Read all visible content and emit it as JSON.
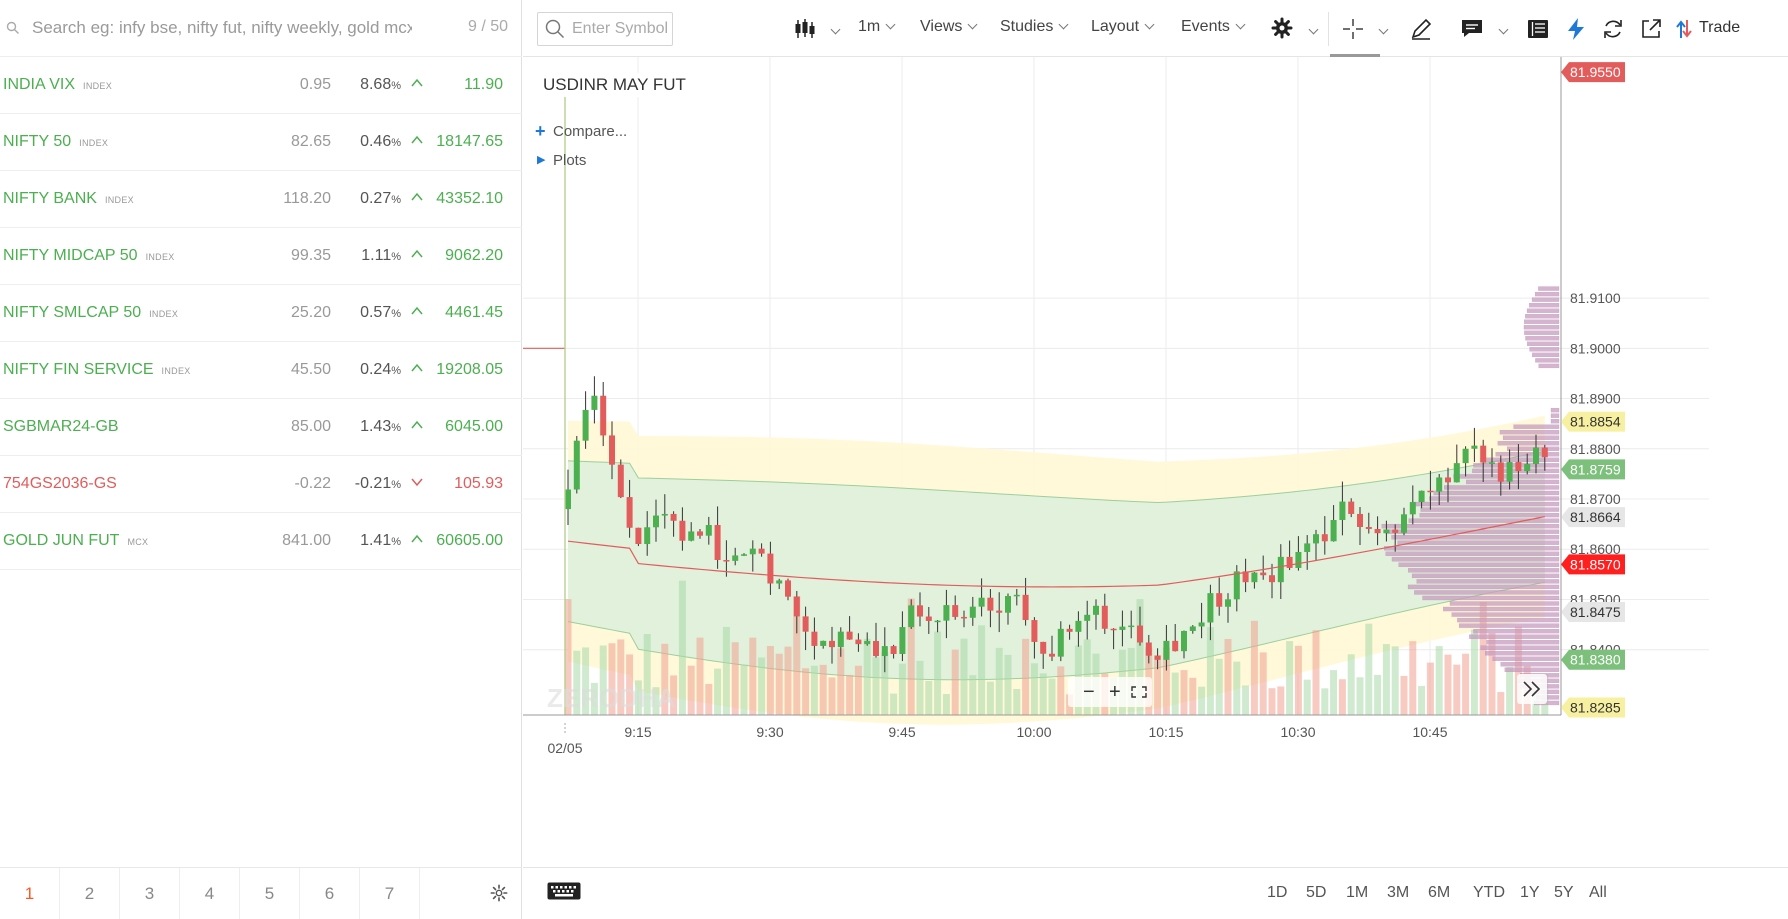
{
  "watchlist": {
    "search_placeholder": "Search eg: infy bse, nifty fut, nifty weekly, gold mcx",
    "count": "9 / 50",
    "items": [
      {
        "name": "INDIA VIX",
        "exchange": "INDEX",
        "change": "0.95",
        "percent": "8.68",
        "ltp": "11.90",
        "dir": "up"
      },
      {
        "name": "NIFTY 50",
        "exchange": "INDEX",
        "change": "82.65",
        "percent": "0.46",
        "ltp": "18147.65",
        "dir": "up"
      },
      {
        "name": "NIFTY BANK",
        "exchange": "INDEX",
        "change": "118.20",
        "percent": "0.27",
        "ltp": "43352.10",
        "dir": "up"
      },
      {
        "name": "NIFTY MIDCAP 50",
        "exchange": "INDEX",
        "change": "99.35",
        "percent": "1.11",
        "ltp": "9062.20",
        "dir": "up"
      },
      {
        "name": "NIFTY SMLCAP 50",
        "exchange": "INDEX",
        "change": "25.20",
        "percent": "0.57",
        "ltp": "4461.45",
        "dir": "up"
      },
      {
        "name": "NIFTY FIN SERVICE",
        "exchange": "INDEX",
        "change": "45.50",
        "percent": "0.24",
        "ltp": "19208.05",
        "dir": "up"
      },
      {
        "name": "SGBMAR24-GB",
        "exchange": "",
        "change": "85.00",
        "percent": "1.43",
        "ltp": "6045.00",
        "dir": "up"
      },
      {
        "name": "754GS2036-GS",
        "exchange": "",
        "change": "-0.22",
        "percent": "-0.21",
        "ltp": "105.93",
        "dir": "down"
      },
      {
        "name": "GOLD JUN FUT",
        "exchange": "MCX",
        "change": "841.00",
        "percent": "1.41",
        "ltp": "60605.00",
        "dir": "up"
      }
    ],
    "percent_sign": "%",
    "pages": [
      "1",
      "2",
      "3",
      "4",
      "5",
      "6",
      "7"
    ],
    "active_page": "1"
  },
  "toolbar": {
    "symbol_placeholder": "Enter Symbol",
    "interval": "1m",
    "views": "Views",
    "studies": "Studies",
    "layout": "Layout",
    "events": "Events",
    "trade": "Trade",
    "icons": [
      "candlestick-icon",
      "gear-icon",
      "crosshair-icon",
      "pencil-icon",
      "comment-icon",
      "table-icon",
      "lightning-icon",
      "refresh-icon",
      "popout-icon",
      "trade-arrows-icon"
    ]
  },
  "chart": {
    "title": "USDINR MAY FUT",
    "compare_label": "Compare...",
    "plots_label": "Plots",
    "watermark": "ZERODHA",
    "date_label": "02/05",
    "colors": {
      "up": "#4caf50",
      "down": "#e25c5c",
      "band_yellow": "#fff8d6",
      "band_green": "#dcf0dc",
      "profile": "#c89cc0"
    }
  },
  "chart_data": {
    "type": "candlestick",
    "title": "USDINR MAY FUT",
    "y_ticks": [
      "81.9100",
      "81.9000",
      "81.8900",
      "81.8800",
      "81.8700",
      "81.8600",
      "81.8500",
      "81.8400"
    ],
    "x_ticks": [
      "9:15",
      "9:30",
      "9:45",
      "10:00",
      "10:15",
      "10:30",
      "10:45"
    ],
    "ylim": [
      81.827,
      81.958
    ],
    "price_labels": [
      {
        "value": "81.9550",
        "color": "#e25c5c"
      },
      {
        "value": "81.8854",
        "color": "#f7f0a0"
      },
      {
        "value": "81.8759",
        "color": "#7cc07c"
      },
      {
        "value": "81.8664",
        "color": "#e6e6e6"
      },
      {
        "value": "81.8570",
        "color": "#ff1f1f"
      },
      {
        "value": "81.8475",
        "color": "#e6e6e6"
      },
      {
        "value": "81.8380",
        "color": "#7cc07c"
      },
      {
        "value": "81.8285",
        "color": "#f7f0a0"
      }
    ],
    "grid": true
  },
  "ranges": [
    "1D",
    "5D",
    "1M",
    "3M",
    "6M",
    "YTD",
    "1Y",
    "5Y",
    "All"
  ]
}
